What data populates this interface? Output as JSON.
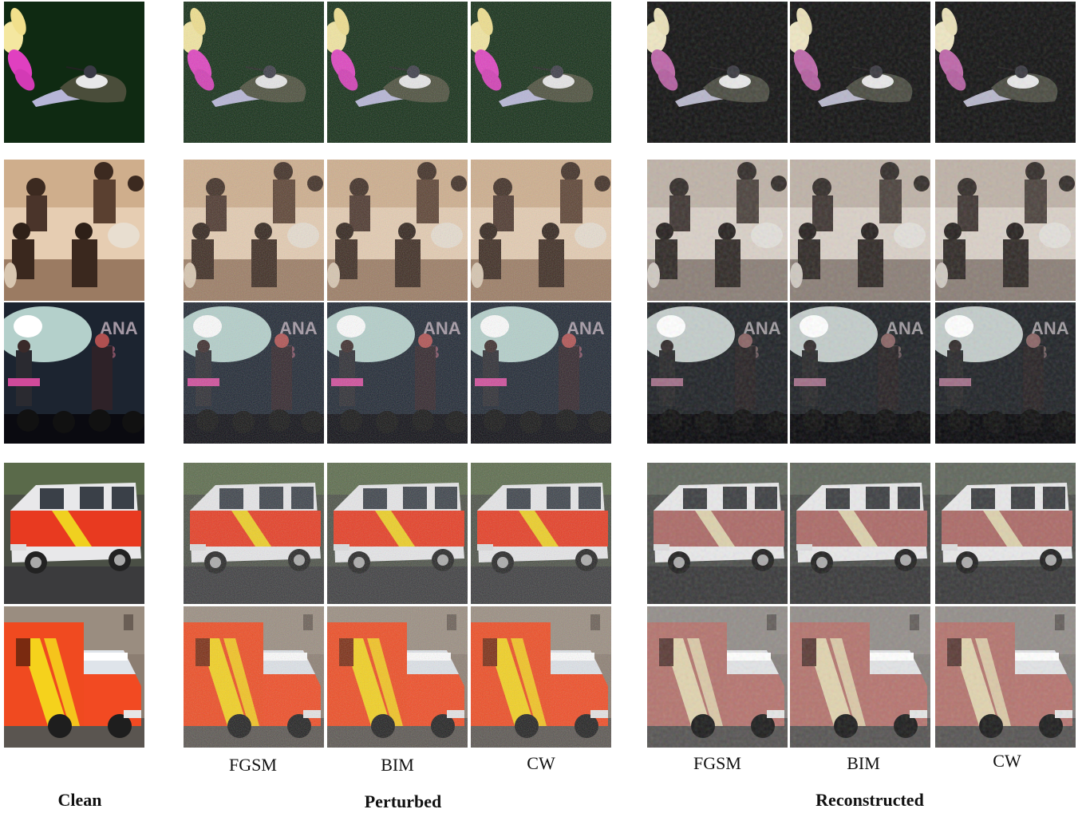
{
  "figure": {
    "groups": {
      "clean": "Clean",
      "perturbed": "Perturbed",
      "reconstructed": "Reconstructed"
    },
    "columns": {
      "perturbed": [
        "FGSM",
        "BIM",
        "CW"
      ],
      "reconstructed": [
        "FGSM",
        "BIM",
        "CW"
      ]
    },
    "rows": [
      {
        "subject": "hummingbird-icon"
      },
      {
        "subject": "band-photo-icon"
      },
      {
        "subject": "concert-stage-icon"
      },
      {
        "subject": "fire-van-icon"
      },
      {
        "subject": "ambulance-icon"
      }
    ]
  }
}
